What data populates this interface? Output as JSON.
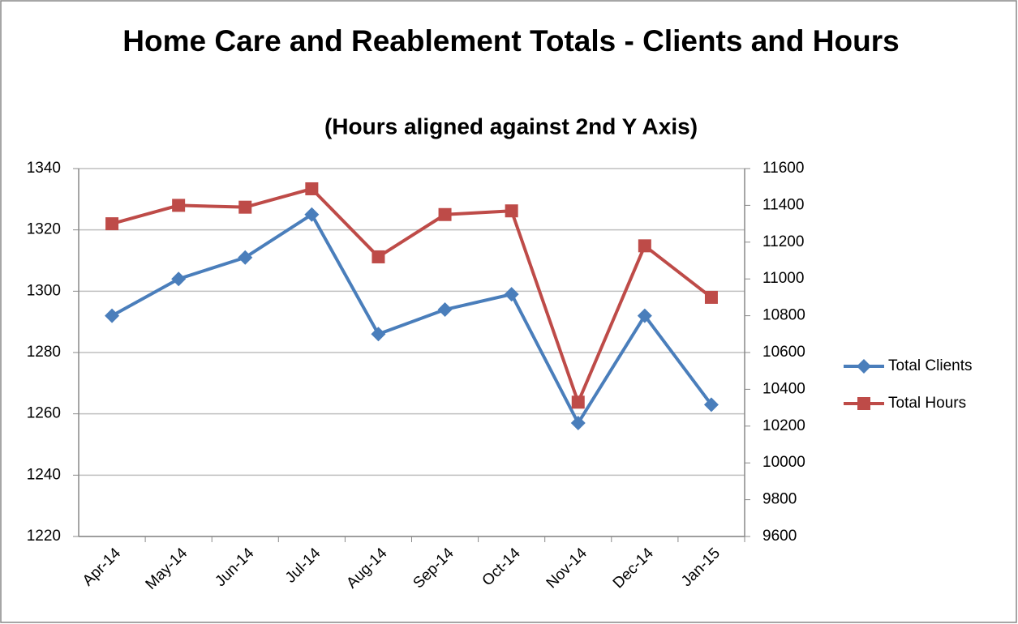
{
  "chart_data": {
    "type": "line",
    "title": "Home Care and Reablement Totals - Clients and Hours",
    "subtitle": "(Hours aligned against 2nd Y Axis)",
    "categories": [
      "Apr-14",
      "May-14",
      "Jun-14",
      "Jul-14",
      "Aug-14",
      "Sep-14",
      "Oct-14",
      "Nov-14",
      "Dec-14",
      "Jan-15"
    ],
    "series": [
      {
        "name": "Total Clients",
        "color": "#4a7ebb",
        "marker": "diamond",
        "values": [
          1292,
          1304,
          1311,
          1325,
          1286,
          1294,
          1299,
          1257,
          1292,
          1263
        ]
      },
      {
        "name": "Total Hours",
        "color": "#be4b48",
        "marker": "square",
        "axis": "y2",
        "values": [
          11300,
          11400,
          11390,
          11490,
          11120,
          11350,
          11370,
          10330,
          11180,
          10900
        ]
      }
    ],
    "ylim": [
      1220,
      1340
    ],
    "yticks": [
      1220,
      1240,
      1260,
      1280,
      1300,
      1320,
      1340
    ],
    "y2lim": [
      9600,
      11600
    ],
    "y2ticks": [
      9600,
      9800,
      10000,
      10200,
      10400,
      10600,
      10800,
      11000,
      11200,
      11400,
      11600
    ],
    "grid": true,
    "legend": "right"
  }
}
